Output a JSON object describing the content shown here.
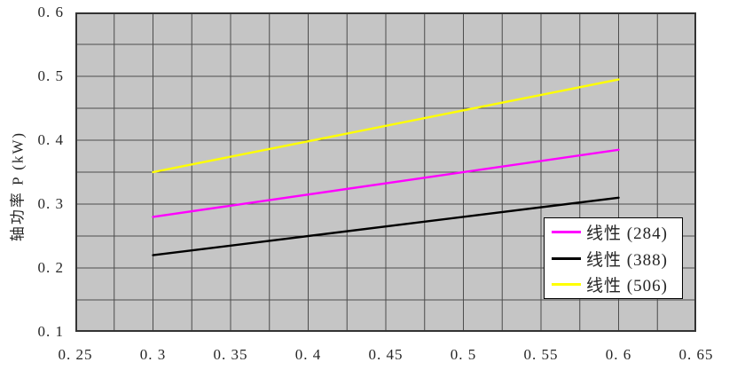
{
  "chart_data": {
    "type": "line",
    "title": "",
    "xlabel": "",
    "ylabel": "轴功率 P (kW)",
    "xlim": [
      0.25,
      0.65
    ],
    "ylim": [
      0.1,
      0.6
    ],
    "x_grid_step": 0.025,
    "y_grid_step": 0.05,
    "grid": true,
    "legend_position": "lower-right",
    "x_ticks": [
      {
        "v": 0.25,
        "label": "0. 25"
      },
      {
        "v": 0.3,
        "label": "0. 3"
      },
      {
        "v": 0.35,
        "label": "0. 35"
      },
      {
        "v": 0.4,
        "label": "0. 4"
      },
      {
        "v": 0.45,
        "label": "0. 45"
      },
      {
        "v": 0.5,
        "label": "0. 5"
      },
      {
        "v": 0.55,
        "label": "0. 55"
      },
      {
        "v": 0.6,
        "label": "0. 6"
      },
      {
        "v": 0.65,
        "label": "0. 65"
      }
    ],
    "y_ticks": [
      {
        "v": 0.6,
        "label": "0. 6"
      },
      {
        "v": 0.5,
        "label": "0. 5"
      },
      {
        "v": 0.4,
        "label": "0. 4"
      },
      {
        "v": 0.3,
        "label": "0. 3"
      },
      {
        "v": 0.2,
        "label": "0. 2"
      },
      {
        "v": 0.1,
        "label": "0. 1"
      }
    ],
    "series": [
      {
        "name": "线性 (284)",
        "color": "#ff00ff",
        "x": [
          0.3,
          0.6
        ],
        "y": [
          0.28,
          0.385
        ]
      },
      {
        "name": "线性 (388)",
        "color": "#000000",
        "x": [
          0.3,
          0.6
        ],
        "y": [
          0.22,
          0.31
        ]
      },
      {
        "name": "线性 (506)",
        "color": "#ffff00",
        "x": [
          0.3,
          0.6
        ],
        "y": [
          0.35,
          0.495
        ]
      }
    ],
    "colors": {
      "plot_background": "#c5c5c5",
      "gridline": "#4d4d4d",
      "plot_border": "#333333",
      "page_background": "#ffffff",
      "text": "#262626"
    }
  }
}
